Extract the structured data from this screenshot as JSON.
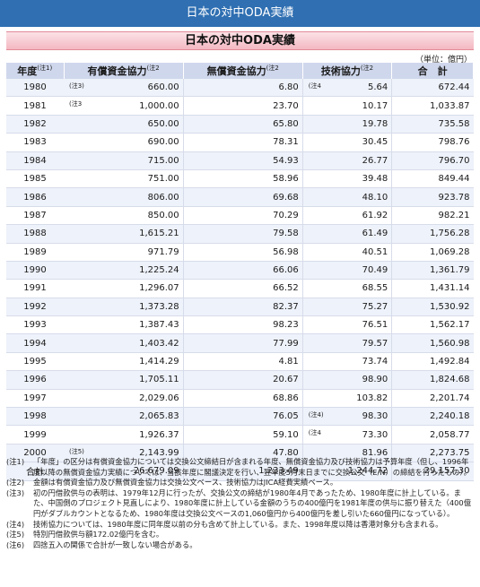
{
  "header": {
    "top_title": "日本の対中ODA実績",
    "section_title": "日本の対中ODA実績"
  },
  "unit": "（単位：億円）",
  "table": {
    "columns": [
      {
        "label": "年度",
        "note": "(注1)"
      },
      {
        "label": "有償資金協力",
        "note": "(注2"
      },
      {
        "label": "無償資金協力",
        "note": "(注2"
      },
      {
        "label": "技術協力",
        "note": "(注2"
      },
      {
        "label": "合　計",
        "note": ""
      }
    ],
    "rows": [
      {
        "year": "1980",
        "loan_note": "(注3)",
        "loan": "660.00",
        "grant": "6.80",
        "tech_note": "(注4",
        "tech": "5.64",
        "total": "672.44"
      },
      {
        "year": "1981",
        "loan_note": "(注3",
        "loan": "1,000.00",
        "grant": "23.70",
        "tech_note": "",
        "tech": "10.17",
        "total": "1,033.87"
      },
      {
        "year": "1982",
        "loan_note": "",
        "loan": "650.00",
        "grant": "65.80",
        "tech_note": "",
        "tech": "19.78",
        "total": "735.58"
      },
      {
        "year": "1983",
        "loan_note": "",
        "loan": "690.00",
        "grant": "78.31",
        "tech_note": "",
        "tech": "30.45",
        "total": "798.76"
      },
      {
        "year": "1984",
        "loan_note": "",
        "loan": "715.00",
        "grant": "54.93",
        "tech_note": "",
        "tech": "26.77",
        "total": "796.70"
      },
      {
        "year": "1985",
        "loan_note": "",
        "loan": "751.00",
        "grant": "58.96",
        "tech_note": "",
        "tech": "39.48",
        "total": "849.44"
      },
      {
        "year": "1986",
        "loan_note": "",
        "loan": "806.00",
        "grant": "69.68",
        "tech_note": "",
        "tech": "48.10",
        "total": "923.78"
      },
      {
        "year": "1987",
        "loan_note": "",
        "loan": "850.00",
        "grant": "70.29",
        "tech_note": "",
        "tech": "61.92",
        "total": "982.21"
      },
      {
        "year": "1988",
        "loan_note": "",
        "loan": "1,615.21",
        "grant": "79.58",
        "tech_note": "",
        "tech": "61.49",
        "total": "1,756.28"
      },
      {
        "year": "1989",
        "loan_note": "",
        "loan": "971.79",
        "grant": "56.98",
        "tech_note": "",
        "tech": "40.51",
        "total": "1,069.28"
      },
      {
        "year": "1990",
        "loan_note": "",
        "loan": "1,225.24",
        "grant": "66.06",
        "tech_note": "",
        "tech": "70.49",
        "total": "1,361.79"
      },
      {
        "year": "1991",
        "loan_note": "",
        "loan": "1,296.07",
        "grant": "66.52",
        "tech_note": "",
        "tech": "68.55",
        "total": "1,431.14"
      },
      {
        "year": "1992",
        "loan_note": "",
        "loan": "1,373.28",
        "grant": "82.37",
        "tech_note": "",
        "tech": "75.27",
        "total": "1,530.92"
      },
      {
        "year": "1993",
        "loan_note": "",
        "loan": "1,387.43",
        "grant": "98.23",
        "tech_note": "",
        "tech": "76.51",
        "total": "1,562.17"
      },
      {
        "year": "1994",
        "loan_note": "",
        "loan": "1,403.42",
        "grant": "77.99",
        "tech_note": "",
        "tech": "79.57",
        "total": "1,560.98"
      },
      {
        "year": "1995",
        "loan_note": "",
        "loan": "1,414.29",
        "grant": "4.81",
        "tech_note": "",
        "tech": "73.74",
        "total": "1,492.84"
      },
      {
        "year": "1996",
        "loan_note": "",
        "loan": "1,705.11",
        "grant": "20.67",
        "tech_note": "",
        "tech": "98.90",
        "total": "1,824.68"
      },
      {
        "year": "1997",
        "loan_note": "",
        "loan": "2,029.06",
        "grant": "68.86",
        "tech_note": "",
        "tech": "103.82",
        "total": "2,201.74"
      },
      {
        "year": "1998",
        "loan_note": "",
        "loan": "2,065.83",
        "grant": "76.05",
        "tech_note": "(注4)",
        "tech": "98.30",
        "total": "2,240.18"
      },
      {
        "year": "1999",
        "loan_note": "",
        "loan": "1,926.37",
        "grant": "59.10",
        "tech_note": "(注4",
        "tech": "73.30",
        "total": "2,058.77"
      },
      {
        "year": "2000",
        "loan_note": "(注5)",
        "loan": "2,143.99",
        "grant": "47.80",
        "tech_note": "",
        "tech": "81.96",
        "total": "2,273.75"
      }
    ],
    "total_row": {
      "label": "合計",
      "loan": "26,679.09",
      "grant": "1,233.49",
      "tech": "1,244.72",
      "total": "29,157.30"
    }
  },
  "notes": [
    {
      "label": "(注1)",
      "text": "「年度」の区分は有償資金協力については交換公文締結日が含まれる年度、無償資金協力及び技術協力は予算年度（但し、1996年度以降の無償資金協力実績については、当該年度に閣議決定を行い、翌年度5月末日までに交換公文（E/N）の締結を行ったもの）。"
    },
    {
      "label": "(注2)",
      "text": "金額は有償資金協力及び無償資金協力は交換公文ベース、技術協力はJICA経費実績ベース。"
    },
    {
      "label": "(注3)",
      "text": "初の円借款供与の表明は、1979年12月に行ったが、交換公文の締結が1980年4月であったため、1980年度に計上している。また、中国側のプロジェクト見直しにより、1980年度に計上している金額のうちの400億円を1981年度の供与に振り替えた（400億円がダブルカウントとなるため、1980年度は交換公文ベースの1,060億円から400億円を差し引いた660億円になっている）。"
    },
    {
      "label": "(注4)",
      "text": "技術協力については、1980年度に同年度以前の分も含めて計上している。また、1998年度以降は香港対象分も含まれる。"
    },
    {
      "label": "(注5)",
      "text": "特別円借款供与額172.02億円を含む。"
    },
    {
      "label": "(注6)",
      "text": "四捨五入の関係で合計が一致しない場合がある。"
    }
  ]
}
